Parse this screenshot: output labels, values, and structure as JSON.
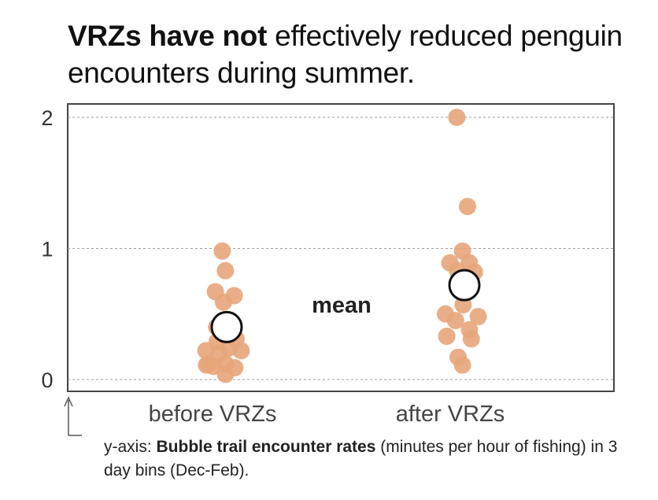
{
  "title": {
    "part1_bold": "VRZs have not",
    "part2": " effectively reduced penguin encounters during summer."
  },
  "caption": {
    "prefix": "y-axis: ",
    "bold": "Bubble trail encounter rates",
    "rest": " (minutes per hour of fishing) in 3 day bins (Dec-Feb)."
  },
  "colors": {
    "points": "#e7a57a",
    "mean_fill": "#ffffff",
    "mean_stroke": "#111111",
    "frame": "#444444",
    "grid": "#9a9a9a"
  },
  "chart_data": {
    "type": "scatter",
    "ylim": [
      0,
      2
    ],
    "yticks": [
      0,
      1,
      2
    ],
    "grid": "horizontal-dashed",
    "categories": [
      "before VRZs",
      "after VRZs"
    ],
    "annotation": "mean",
    "series": [
      {
        "category": "before VRZs",
        "points": [
          {
            "jitter": -0.07,
            "y": 0.98
          },
          {
            "jitter": -0.02,
            "y": 0.83
          },
          {
            "jitter": -0.18,
            "y": 0.67
          },
          {
            "jitter": -0.05,
            "y": 0.59
          },
          {
            "jitter": 0.12,
            "y": 0.64
          },
          {
            "jitter": -0.16,
            "y": 0.4
          },
          {
            "jitter": 0.01,
            "y": 0.39
          },
          {
            "jitter": -0.15,
            "y": 0.29
          },
          {
            "jitter": 0.15,
            "y": 0.31
          },
          {
            "jitter": -0.33,
            "y": 0.22
          },
          {
            "jitter": -0.12,
            "y": 0.2
          },
          {
            "jitter": 0.04,
            "y": 0.24
          },
          {
            "jitter": 0.23,
            "y": 0.22
          },
          {
            "jitter": -0.29,
            "y": 0.12
          },
          {
            "jitter": -0.21,
            "y": 0.1
          },
          {
            "jitter": -0.02,
            "y": 0.12
          },
          {
            "jitter": 0.13,
            "y": 0.09
          },
          {
            "jitter": -0.32,
            "y": 0.11
          },
          {
            "jitter": -0.02,
            "y": 0.04
          }
        ],
        "mean": 0.4
      },
      {
        "category": "after VRZs",
        "points": [
          {
            "jitter": -0.12,
            "y": 2.0
          },
          {
            "jitter": 0.05,
            "y": 1.32
          },
          {
            "jitter": -0.03,
            "y": 0.98
          },
          {
            "jitter": -0.23,
            "y": 0.89
          },
          {
            "jitter": 0.08,
            "y": 0.89
          },
          {
            "jitter": -0.11,
            "y": 0.83
          },
          {
            "jitter": 0.16,
            "y": 0.82
          },
          {
            "jitter": -0.3,
            "y": 0.5
          },
          {
            "jitter": -0.02,
            "y": 0.57
          },
          {
            "jitter": 0.22,
            "y": 0.48
          },
          {
            "jitter": -0.14,
            "y": 0.45
          },
          {
            "jitter": -0.28,
            "y": 0.33
          },
          {
            "jitter": 0.08,
            "y": 0.38
          },
          {
            "jitter": 0.11,
            "y": 0.31
          },
          {
            "jitter": -0.1,
            "y": 0.17
          },
          {
            "jitter": -0.03,
            "y": 0.11
          }
        ],
        "mean": 0.72
      }
    ]
  }
}
